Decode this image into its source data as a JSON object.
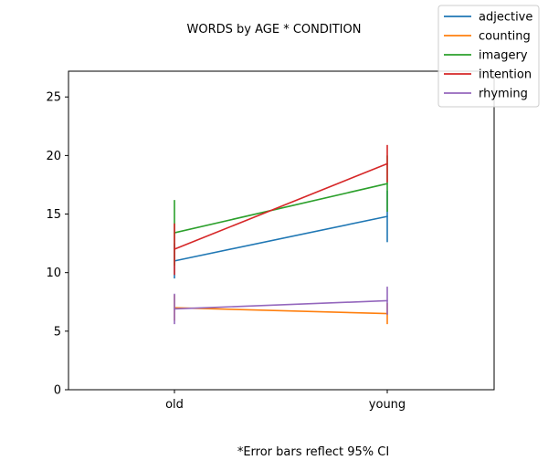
{
  "chart_data": {
    "type": "line",
    "title": "WORDS by AGE * CONDITION",
    "xlabel": "",
    "ylabel": "",
    "categories": [
      "old",
      "young"
    ],
    "ylim": [
      0,
      27.2
    ],
    "yticks": [
      0,
      5,
      10,
      15,
      20,
      25
    ],
    "grid": false,
    "legend_position": "top-right",
    "footnote": "*Error bars reflect 95% CI",
    "series": [
      {
        "name": "adjective",
        "color": "#1f77b4",
        "values": [
          11.0,
          14.8
        ],
        "ci_low": [
          9.5,
          12.6
        ],
        "ci_high": [
          12.5,
          17.0
        ]
      },
      {
        "name": "counting",
        "color": "#ff7f0e",
        "values": [
          7.0,
          6.5
        ],
        "ci_low": [
          5.9,
          5.6
        ],
        "ci_high": [
          8.1,
          7.4
        ]
      },
      {
        "name": "imagery",
        "color": "#2ca02c",
        "values": [
          13.4,
          17.6
        ],
        "ci_low": [
          10.6,
          15.2
        ],
        "ci_high": [
          16.2,
          20.0
        ]
      },
      {
        "name": "intention",
        "color": "#d62728",
        "values": [
          12.0,
          19.3
        ],
        "ci_low": [
          9.8,
          17.7
        ],
        "ci_high": [
          14.2,
          20.9
        ]
      },
      {
        "name": "rhyming",
        "color": "#9467bd",
        "values": [
          6.9,
          7.6
        ],
        "ci_low": [
          5.6,
          6.4
        ],
        "ci_high": [
          8.2,
          8.8
        ]
      }
    ]
  }
}
